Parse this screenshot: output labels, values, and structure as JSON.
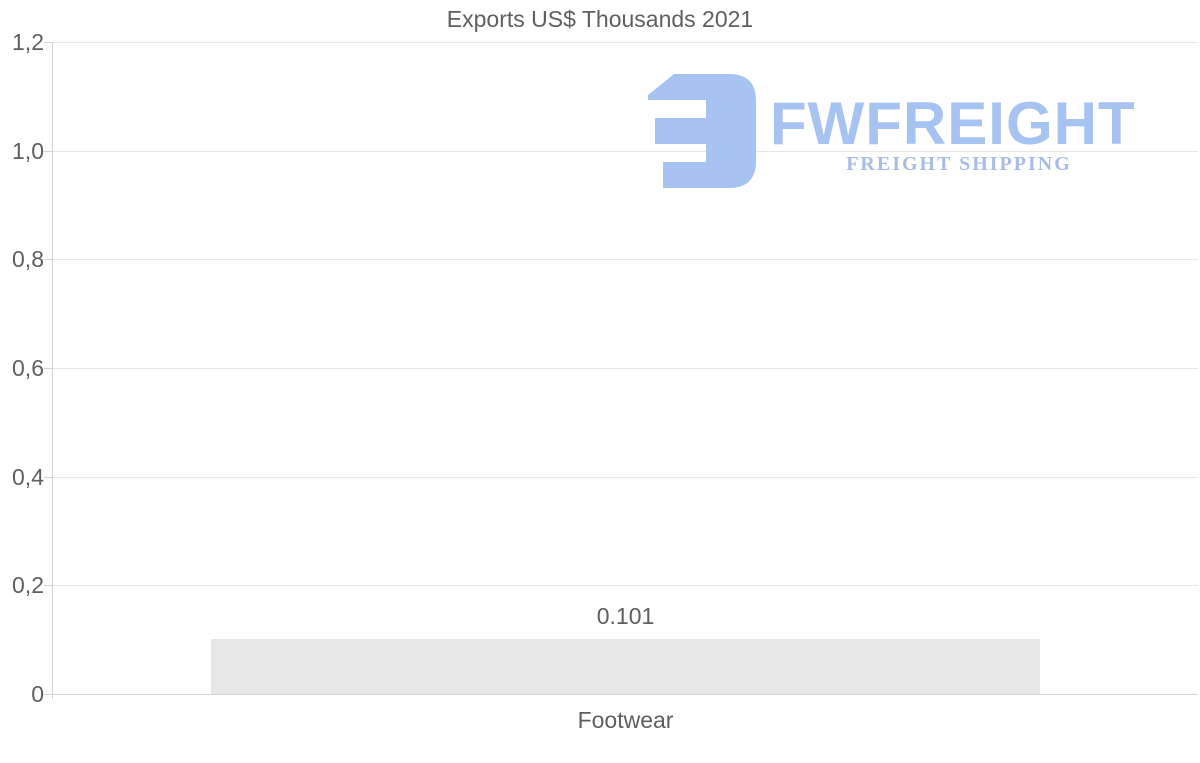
{
  "title": "Exports US$ Thousands 2021",
  "colors": {
    "background": "#ffffff",
    "text": "#5f5f5f",
    "gridline": "#e7e7e7",
    "axis": "#d4d4d4",
    "bar_fill": "#e8e8e8",
    "logo_blue": "#a6c3f1",
    "logo_tagline_blue": "#a9bce6"
  },
  "watermark": {
    "wordmark": "FWFREIGHT",
    "tagline": "FREIGHT SHIPPING"
  },
  "chart_data": {
    "type": "bar",
    "title": "Exports US$ Thousands 2021",
    "categories": [
      "Footwear"
    ],
    "values": [
      0.101
    ],
    "value_labels": [
      "0.101"
    ],
    "xlabel": "",
    "ylabel": "",
    "ylim": [
      0,
      1.2
    ],
    "ytick_values": [
      0,
      0.2,
      0.4,
      0.6,
      0.8,
      1.0,
      1.2
    ],
    "ytick_labels": [
      "0",
      "0,2",
      "0,4",
      "0,6",
      "0,8",
      "1,0",
      "1,2"
    ],
    "grid": true,
    "legend": false,
    "bar_color": "#e8e8e8",
    "decimal_separator_axis": ",",
    "decimal_separator_label": "."
  }
}
